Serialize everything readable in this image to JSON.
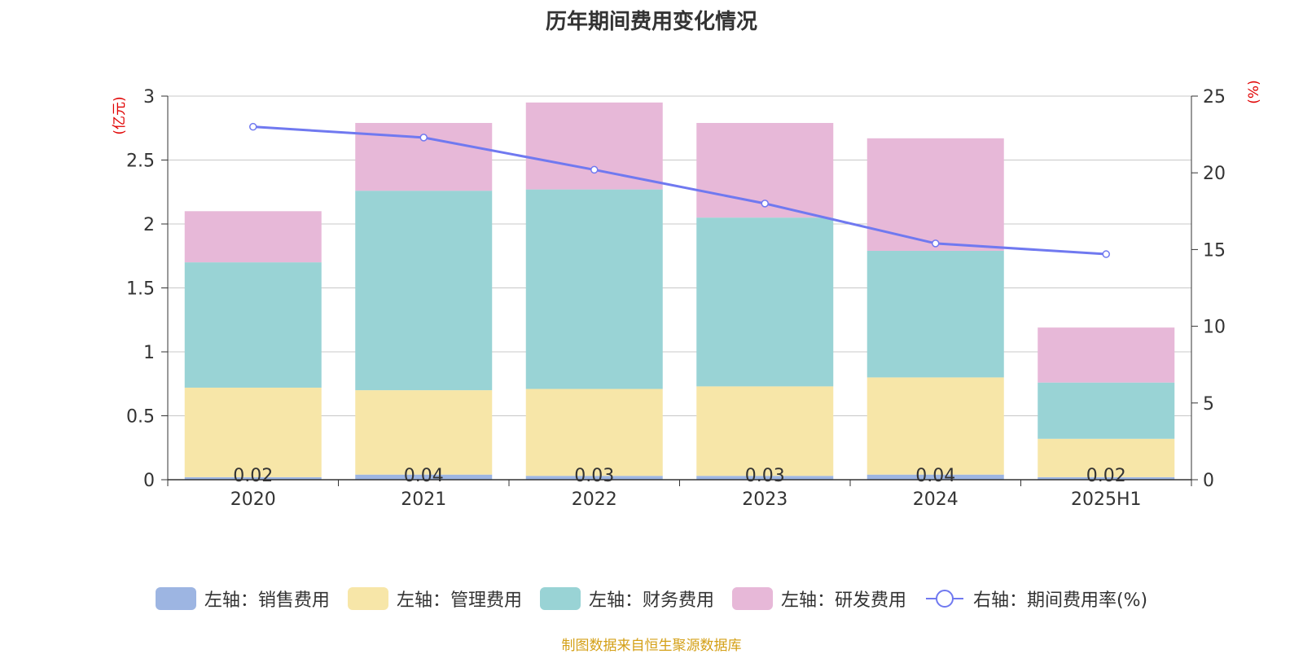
{
  "chart_data": {
    "type": "bar",
    "title": "历年期间费用变化情况",
    "categories": [
      "2020",
      "2021",
      "2022",
      "2023",
      "2024",
      "2025H1"
    ],
    "y_left": {
      "unit_label": "(亿元)",
      "min": 0,
      "max": 3,
      "ticks": [
        "0",
        "0.5",
        "1",
        "1.5",
        "2",
        "2.5",
        "3"
      ]
    },
    "y_right": {
      "unit_label": "(%)",
      "min": 0,
      "max": 25,
      "ticks": [
        "0",
        "5",
        "10",
        "15",
        "20",
        "25"
      ]
    },
    "stacked_series": [
      {
        "name": "左轴：销售费用",
        "color": "#9db5e2",
        "values": [
          0.02,
          0.04,
          0.03,
          0.03,
          0.04,
          0.02
        ]
      },
      {
        "name": "左轴：管理费用",
        "color": "#f7e6a8",
        "values": [
          0.7,
          0.66,
          0.68,
          0.7,
          0.76,
          0.3
        ]
      },
      {
        "name": "左轴：财务费用",
        "color": "#99d3d5",
        "values": [
          0.98,
          1.56,
          1.56,
          1.32,
          0.99,
          0.44
        ]
      },
      {
        "name": "左轴：研发费用",
        "color": "#e7b8d8",
        "values": [
          0.4,
          0.53,
          0.68,
          0.74,
          0.88,
          0.43
        ]
      }
    ],
    "bar_labels": [
      "0.02",
      "0.04",
      "0.03",
      "0.03",
      "0.04",
      "0.02"
    ],
    "line_series": {
      "name": "右轴：期间费用率(%)",
      "color": "#7079f0",
      "values": [
        23.0,
        22.3,
        20.2,
        18.0,
        15.4,
        14.7
      ]
    },
    "grid": true,
    "legend_position": "bottom"
  },
  "source_note": "制图数据来自恒生聚源数据库"
}
